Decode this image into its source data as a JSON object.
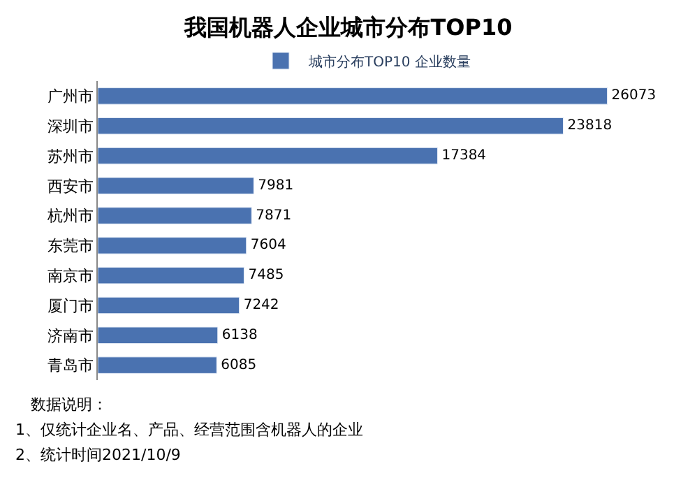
{
  "chart_data": {
    "type": "bar",
    "orientation": "horizontal",
    "title": "我国机器人企业城市分布TOP10",
    "categories": [
      "广州市",
      "深圳市",
      "苏州市",
      "西安市",
      "杭州市",
      "东莞市",
      "南京市",
      "厦门市",
      "济南市",
      "青岛市"
    ],
    "series": [
      {
        "name": "城市分布TOP10 企业数量",
        "color": "#4a72b0",
        "values": [
          26073,
          23818,
          17384,
          7981,
          7871,
          7604,
          7485,
          7242,
          6138,
          6085
        ]
      }
    ],
    "data_labels": true,
    "legend": "top",
    "annotations": [
      "数据说明：",
      "1、仅统计企业名、产品、经营范围含机器人的企业",
      "2、统计时间2021/10/9"
    ]
  }
}
